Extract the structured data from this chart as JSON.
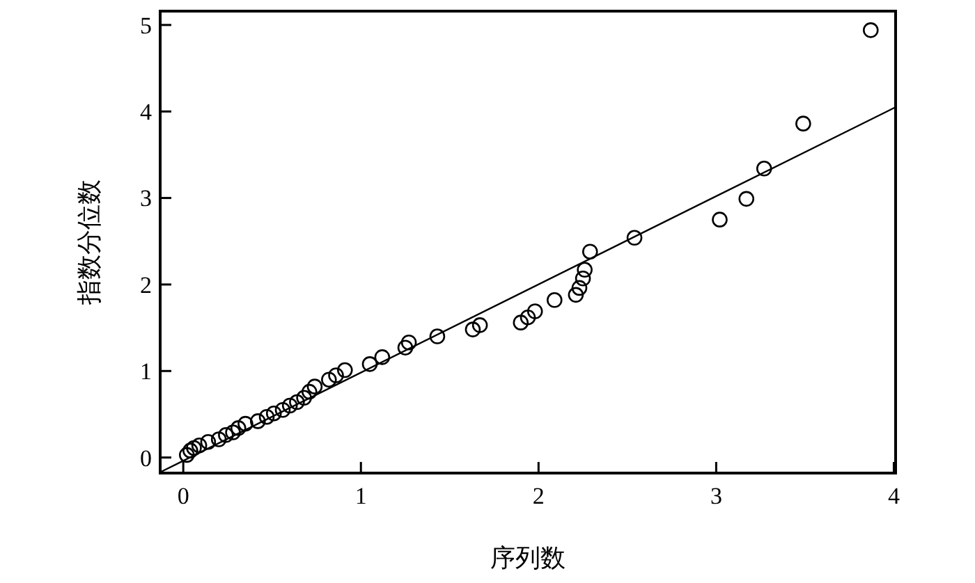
{
  "chart_data": {
    "type": "scatter",
    "xlabel": "序列数",
    "ylabel": "指数分位数",
    "xlim": [
      -0.13,
      4.01
    ],
    "ylim": [
      -0.18,
      5.16
    ],
    "xticks": [
      0,
      1,
      2,
      3,
      4
    ],
    "yticks": [
      0,
      1,
      2,
      3,
      4,
      5
    ],
    "grid": false,
    "marker": "circle",
    "series": [
      {
        "color": "#000000",
        "x": [
          0.02,
          0.04,
          0.06,
          0.09,
          0.14,
          0.2,
          0.24,
          0.28,
          0.31,
          0.35,
          0.42,
          0.47,
          0.51,
          0.56,
          0.6,
          0.64,
          0.68,
          0.71,
          0.74,
          0.82,
          0.86,
          0.91,
          1.05,
          1.12,
          1.25,
          1.27,
          1.43,
          1.63,
          1.67,
          1.9,
          1.94,
          1.98,
          2.09,
          2.21,
          2.23,
          2.25,
          2.26,
          2.29,
          2.54,
          3.02,
          3.17,
          3.27,
          3.49,
          3.87
        ],
        "values": [
          0.03,
          0.08,
          0.11,
          0.14,
          0.18,
          0.21,
          0.26,
          0.29,
          0.34,
          0.39,
          0.42,
          0.47,
          0.51,
          0.55,
          0.6,
          0.64,
          0.69,
          0.76,
          0.82,
          0.9,
          0.95,
          1.01,
          1.08,
          1.16,
          1.27,
          1.33,
          1.4,
          1.48,
          1.53,
          1.56,
          1.62,
          1.69,
          1.82,
          1.88,
          1.96,
          2.07,
          2.17,
          2.38,
          2.54,
          2.75,
          2.99,
          3.34,
          3.86,
          4.94
        ]
      },
      {
        "type": "line",
        "color": "#000000",
        "line_style": "solid",
        "marker": "none",
        "x": [
          -0.13,
          4.01
        ],
        "values": [
          -0.17,
          4.05
        ]
      }
    ]
  }
}
